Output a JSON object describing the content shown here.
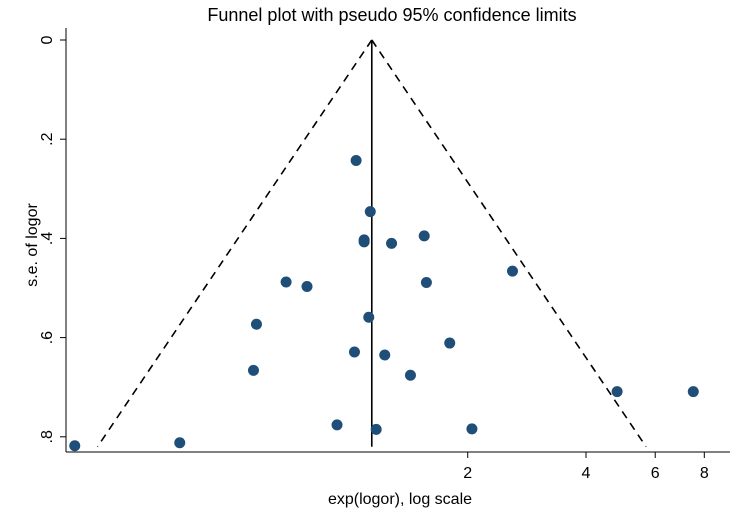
{
  "chart_data": {
    "type": "scatter",
    "title": "Funnel plot with pseudo 95% confidence limits",
    "xlabel": "exp(logor), log scale",
    "ylabel": "s.e. of logor",
    "x_scale": "log",
    "y_reversed": true,
    "xlim": [
      0.19,
      9.3
    ],
    "ylim": [
      0,
      0.84
    ],
    "x_ticks": [
      2,
      4,
      6,
      8
    ],
    "y_ticks": [
      0,
      0.2,
      0.4,
      0.6,
      0.8
    ],
    "y_tick_labels": [
      "0",
      ".2",
      ".4",
      ".6",
      ".8"
    ],
    "pooled_estimate": 1.14,
    "ci_level": "95%",
    "colors": {
      "point": "#1f4e79",
      "lines": "#000000"
    },
    "points": [
      {
        "x": 1.04,
        "y": 0.243
      },
      {
        "x": 1.13,
        "y": 0.346
      },
      {
        "x": 1.55,
        "y": 0.395
      },
      {
        "x": 1.09,
        "y": 0.403
      },
      {
        "x": 1.09,
        "y": 0.407
      },
      {
        "x": 1.28,
        "y": 0.41
      },
      {
        "x": 2.6,
        "y": 0.466
      },
      {
        "x": 0.69,
        "y": 0.488
      },
      {
        "x": 0.78,
        "y": 0.497
      },
      {
        "x": 1.57,
        "y": 0.489
      },
      {
        "x": 1.12,
        "y": 0.559
      },
      {
        "x": 0.58,
        "y": 0.573
      },
      {
        "x": 1.8,
        "y": 0.611
      },
      {
        "x": 1.03,
        "y": 0.629
      },
      {
        "x": 1.23,
        "y": 0.635
      },
      {
        "x": 0.57,
        "y": 0.666
      },
      {
        "x": 1.43,
        "y": 0.676
      },
      {
        "x": 4.8,
        "y": 0.709
      },
      {
        "x": 7.5,
        "y": 0.709
      },
      {
        "x": 0.93,
        "y": 0.776
      },
      {
        "x": 1.17,
        "y": 0.785
      },
      {
        "x": 2.05,
        "y": 0.784
      },
      {
        "x": 0.37,
        "y": 0.812
      },
      {
        "x": 0.2,
        "y": 0.818
      }
    ]
  }
}
